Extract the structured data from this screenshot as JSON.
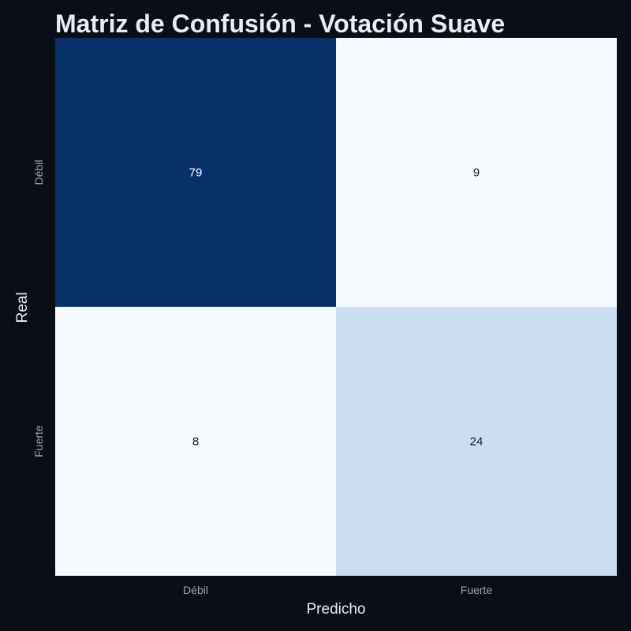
{
  "chart_data": {
    "type": "heatmap",
    "title": "Matriz de Confusión - Votación Suave",
    "xlabel": "Predicho",
    "ylabel": "Real",
    "x_categories": [
      "Débil",
      "Fuerte"
    ],
    "y_categories": [
      "Débil",
      "Fuerte"
    ],
    "values": [
      [
        79,
        9
      ],
      [
        8,
        24
      ]
    ],
    "colorscale": "Blues",
    "colorbar": false,
    "grid": false,
    "colors": {
      "background": "#0a0e17",
      "low": "#f7fbff",
      "high": "#08306b",
      "text_light": "#ffffff",
      "text_dark": "#1a1a1a"
    }
  }
}
